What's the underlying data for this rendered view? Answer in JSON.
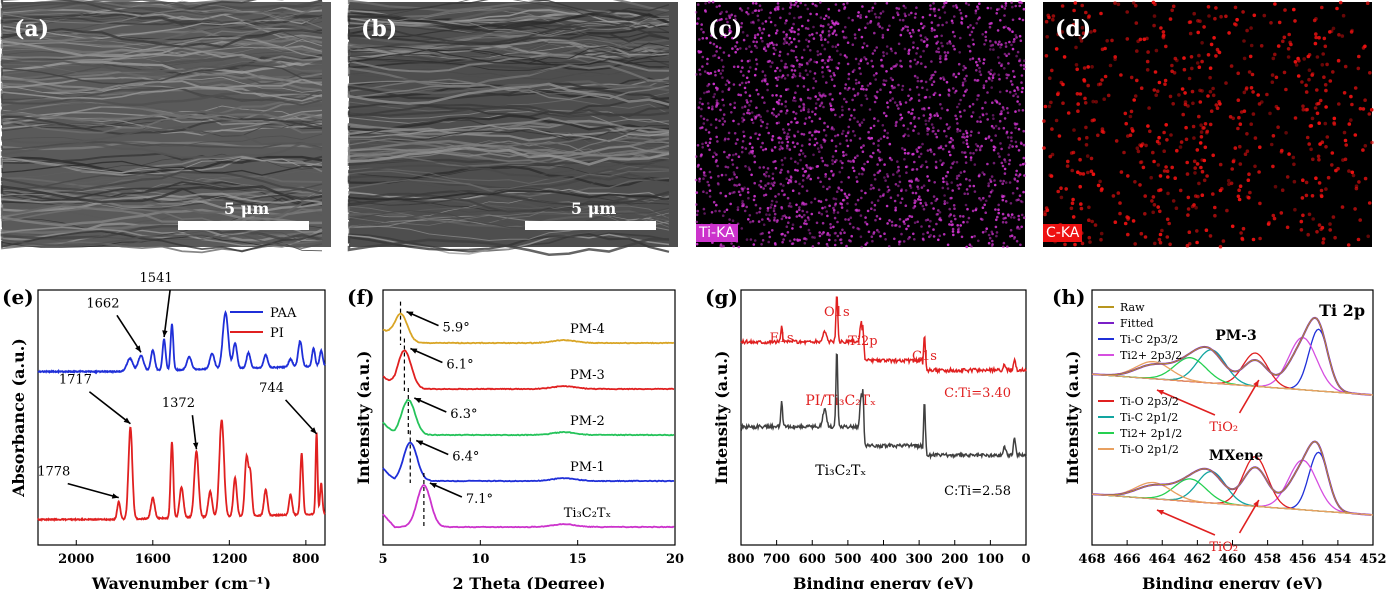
{
  "panels": {
    "a": {
      "letter": "(a)",
      "scale": "5 μm"
    },
    "b": {
      "letter": "(b)",
      "scale": "5 μm"
    },
    "c": {
      "letter": "(c)",
      "map": "Ti-KA",
      "color": "#cc33cc"
    },
    "d": {
      "letter": "(d)",
      "map": "C-KA",
      "color": "#ee1111"
    }
  },
  "chart_data": [
    {
      "id": "e",
      "letter": "(e)",
      "type": "line",
      "xlabel": "Wavenumber (cm⁻¹)",
      "ylabel": "Absorbance (a.u.)",
      "xlim": [
        2200,
        700
      ],
      "x_ticks": [
        2000,
        1600,
        1200,
        800
      ],
      "legend": {
        "placement": "top-right",
        "entries": [
          {
            "name": "PAA",
            "color": "#1f2fd8"
          },
          {
            "name": "PI",
            "color": "#e02020"
          }
        ]
      },
      "series": [
        {
          "name": "PAA",
          "color": "#1f2fd8",
          "baseline": 0.68,
          "peaks": [
            [
              1720,
              0.05,
              15
            ],
            [
              1662,
              0.06,
              14
            ],
            [
              1600,
              0.08,
              10
            ],
            [
              1541,
              0.12,
              8
            ],
            [
              1500,
              0.18,
              7
            ],
            [
              1410,
              0.05,
              12
            ],
            [
              1290,
              0.06,
              12
            ],
            [
              1220,
              0.22,
              14
            ],
            [
              1170,
              0.1,
              10
            ],
            [
              1100,
              0.06,
              10
            ],
            [
              1010,
              0.05,
              10
            ],
            [
              880,
              0.03,
              10
            ],
            [
              830,
              0.1,
              10
            ],
            [
              760,
              0.07,
              8
            ],
            [
              720,
              0.06,
              8
            ]
          ]
        },
        {
          "name": "PI",
          "color": "#e02020",
          "baseline": 0.1,
          "peaks": [
            [
              1778,
              0.07,
              8
            ],
            [
              1717,
              0.36,
              10
            ],
            [
              1600,
              0.08,
              10
            ],
            [
              1500,
              0.3,
              7
            ],
            [
              1450,
              0.12,
              10
            ],
            [
              1372,
              0.26,
              11
            ],
            [
              1300,
              0.1,
              10
            ],
            [
              1240,
              0.38,
              12
            ],
            [
              1170,
              0.15,
              9
            ],
            [
              1110,
              0.23,
              9
            ],
            [
              1090,
              0.16,
              8
            ],
            [
              1010,
              0.1,
              9
            ],
            [
              880,
              0.08,
              8
            ],
            [
              822,
              0.24,
              7
            ],
            [
              744,
              0.32,
              5
            ],
            [
              720,
              0.12,
              6
            ]
          ]
        }
      ],
      "annotations": [
        {
          "text": "1662",
          "x": 1662,
          "series": "PAA"
        },
        {
          "text": "1541",
          "x": 1541,
          "series": "PAA"
        },
        {
          "text": "1717",
          "x": 1717,
          "series": "PI"
        },
        {
          "text": "1372",
          "x": 1372,
          "series": "PI"
        },
        {
          "text": "744",
          "x": 744,
          "series": "PI"
        },
        {
          "text": "1778",
          "x": 1778,
          "series": "PI"
        }
      ]
    },
    {
      "id": "f",
      "letter": "(f)",
      "type": "line",
      "xlabel": "2 Theta (Degree)",
      "ylabel": "Intensity (a.u.)",
      "xlim": [
        5,
        20
      ],
      "x_ticks": [
        5,
        10,
        15,
        20
      ],
      "series": [
        {
          "name": "PM-4",
          "label": "PM-4",
          "color": "#d9a526",
          "offset": 4,
          "peak": 5.9,
          "peak_label": "5.9°",
          "height": 0.42
        },
        {
          "name": "PM-3",
          "label": "PM-3",
          "color": "#e02020",
          "offset": 3,
          "peak": 6.1,
          "peak_label": "6.1°",
          "height": 0.55
        },
        {
          "name": "PM-2",
          "label": "PM-2",
          "color": "#25c35a",
          "offset": 2,
          "peak": 6.3,
          "peak_label": "6.3°",
          "height": 0.5
        },
        {
          "name": "PM-1",
          "label": "PM-1",
          "color": "#1f2fd8",
          "offset": 1,
          "peak": 6.4,
          "peak_label": "6.4°",
          "height": 0.55
        },
        {
          "name": "Ti3C2Tx",
          "label": "Ti₃C₂Tₓ",
          "color": "#cc33cc",
          "offset": 0,
          "peak": 7.1,
          "peak_label": "7.1°",
          "height": 0.6
        }
      ]
    },
    {
      "id": "g",
      "letter": "(g)",
      "type": "line",
      "xlabel": "Binding energy (eV)",
      "ylabel": "Intensity (a.u.)",
      "xlim": [
        800,
        0
      ],
      "x_ticks": [
        800,
        700,
        600,
        500,
        400,
        300,
        200,
        100,
        0
      ],
      "peak_labels": [
        {
          "text": "F1s",
          "x": 686
        },
        {
          "text": "O1s",
          "x": 531
        },
        {
          "text": "Ti2p",
          "x": 458
        },
        {
          "text": "C1s",
          "x": 285
        }
      ],
      "series": [
        {
          "name": "PI/Ti3C2Tx",
          "label": "PI/Ti₃C₂Tₓ",
          "color": "#e02020",
          "ratio": "C:Ti=3.40"
        },
        {
          "name": "Ti3C2Tx",
          "label": "Ti₃C₂Tₓ",
          "color": "#404040",
          "ratio": "C:Ti=2.58"
        }
      ]
    },
    {
      "id": "h",
      "letter": "(h)",
      "type": "line",
      "title": "Ti 2p",
      "xlabel": "Binding energy (eV)",
      "ylabel": "Intensity (a.u.)",
      "xlim": [
        468,
        452
      ],
      "x_ticks": [
        468,
        466,
        464,
        462,
        460,
        458,
        456,
        454,
        452
      ],
      "legend_top": [
        {
          "name": "Raw",
          "color": "#b8961e"
        },
        {
          "name": "Fitted",
          "color": "#7a1fc7"
        },
        {
          "name": "Ti-C 2p3/2",
          "color": "#1f2fd8"
        },
        {
          "name": "Ti2+ 2p3/2",
          "color": "#d64fe0"
        }
      ],
      "legend_mid": [
        {
          "name": "Ti-O 2p3/2",
          "color": "#e02020"
        },
        {
          "name": "Ti-C 2p1/2",
          "color": "#12a5a0"
        },
        {
          "name": "Ti2+ 2p1/2",
          "color": "#25d050"
        },
        {
          "name": "Ti-O 2p1/2",
          "color": "#e8a060"
        }
      ],
      "samples": [
        {
          "name": "PM-3",
          "annotation": "TiO₂"
        },
        {
          "name": "MXene",
          "annotation": "TiO₂"
        }
      ]
    }
  ]
}
